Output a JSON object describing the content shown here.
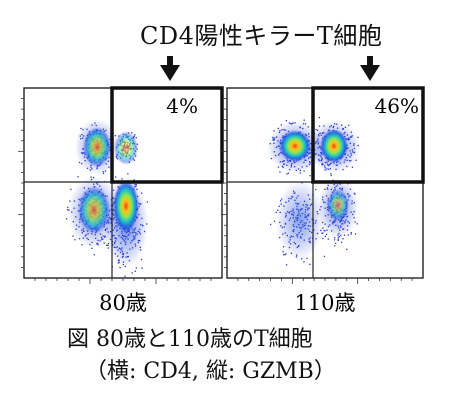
{
  "figure_title": "CD4陽性キラーT細胞",
  "caption": {
    "line1": "図 80歳と110歳のT細胞",
    "line2": "（横: CD4, 縦: GZMB）"
  },
  "chart_data": [
    {
      "type": "scatter",
      "subtype": "flow-cytometry-density",
      "label": "80歳",
      "x_marker": "CD4",
      "y_marker": "GZMB",
      "gate": "upper-right",
      "gate_percent_label": "4%",
      "gate_percent": 4,
      "populations": [
        {
          "quadrant": "upper-left",
          "density": "high"
        },
        {
          "quadrant": "upper-right",
          "density": "medium"
        },
        {
          "quadrant": "lower-left",
          "density": "high"
        },
        {
          "quadrant": "lower-right",
          "density": "very-high"
        }
      ]
    },
    {
      "type": "scatter",
      "subtype": "flow-cytometry-density",
      "label": "110歳",
      "x_marker": "CD4",
      "y_marker": "GZMB",
      "gate": "upper-right",
      "gate_percent_label": "46%",
      "gate_percent": 46,
      "populations": [
        {
          "quadrant": "upper-left",
          "density": "very-high"
        },
        {
          "quadrant": "upper-right",
          "density": "very-high"
        },
        {
          "quadrant": "lower-left",
          "density": "medium"
        },
        {
          "quadrant": "lower-right",
          "density": "high"
        }
      ]
    }
  ],
  "colors": {
    "frame": "#222222",
    "gate": "#111111",
    "density_low": "#1f4fd8",
    "density_mid": "#18c8b0",
    "density_high": "#e6e020",
    "density_peak": "#e23a1c"
  }
}
